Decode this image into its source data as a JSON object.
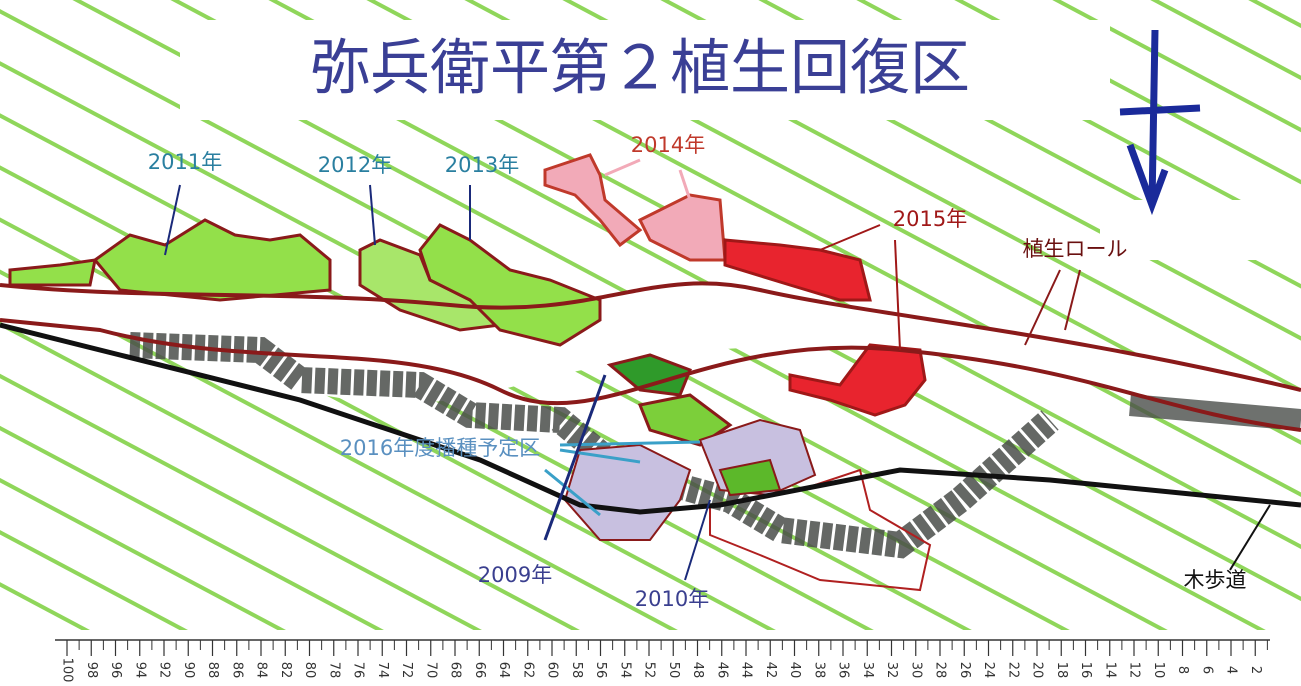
{
  "title": "弥兵衛平第２植生回復区",
  "labels": {
    "y2011": "2011年",
    "y2012": "2012年",
    "y2013": "2013年",
    "y2014": "2014年",
    "y2015": "2015年",
    "roll": "植生ロール",
    "plan2016": "2016年度播種予定区",
    "y2009": "2009年",
    "y2010": "2010年",
    "walkway": "木歩道"
  },
  "scale": {
    "labels": [
      100,
      98,
      96,
      94,
      92,
      90,
      88,
      86,
      84,
      82,
      80,
      78,
      76,
      74,
      72,
      70,
      68,
      66,
      64,
      62,
      60,
      58,
      56,
      54,
      52,
      50,
      48,
      46,
      44,
      42,
      40,
      38,
      36,
      34,
      32,
      30,
      28,
      26,
      24,
      22,
      20,
      18,
      16,
      14,
      12,
      10,
      8,
      6,
      4,
      2
    ]
  }
}
